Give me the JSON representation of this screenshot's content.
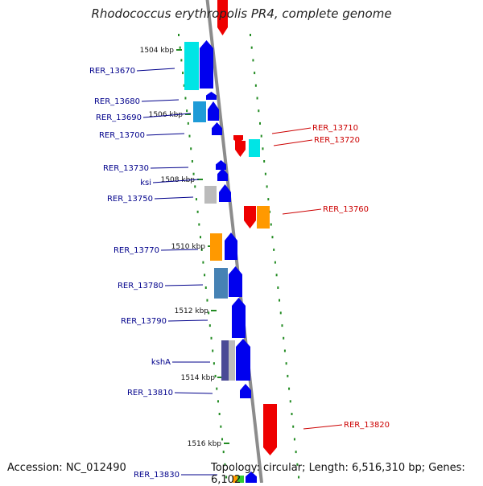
{
  "title": "Rhodococcus erythropolis PR4, complete genome",
  "footer": {
    "accession": "Accession: NC_012490",
    "topology": "Topology: circular; Length: 6,516,310 bp; Genes: 6,102"
  },
  "colors": {
    "backbone": "#8c8c8c",
    "forward_label": "#00008b",
    "reverse_label": "#cc0000",
    "tick": "#228b22",
    "blue": "#0000ee",
    "red": "#ee0000",
    "cyan": "#00e5e5",
    "steel": "#4682b4",
    "sky": "#1e9bd7",
    "orange": "#ff9900",
    "gray": "#bbbbbb",
    "navy": "#4b4b96"
  },
  "scale_labels": [
    "1504 kbp",
    "1506 kbp",
    "1508 kbp",
    "1510 kbp",
    "1512 kbp",
    "1514 kbp",
    "1516 kbp"
  ],
  "gene_labels_left": [
    "RER_13670",
    "RER_13680",
    "RER_13690",
    "RER_13700",
    "RER_13730",
    "ksi",
    "RER_13750",
    "RER_13770",
    "RER_13780",
    "RER_13790",
    "kshA",
    "RER_13810",
    "RER_13830"
  ],
  "gene_labels_right": [
    "RER_13710",
    "RER_13720",
    "RER_13760",
    "RER_13820"
  ]
}
